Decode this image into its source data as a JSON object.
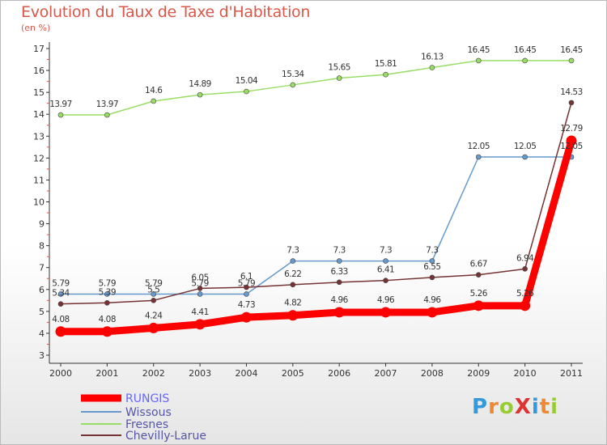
{
  "title": "Evolution du Taux de Taxe d'Habitation",
  "unit": "(en %)",
  "logo": "ProXiti",
  "chart_data": {
    "type": "line",
    "x": [
      "2000",
      "2001",
      "2002",
      "2003",
      "2004",
      "2005",
      "2006",
      "2007",
      "2008",
      "2009",
      "2010",
      "2011"
    ],
    "ylim": [
      3,
      17
    ],
    "yticks": [
      3,
      4,
      5,
      6,
      7,
      8,
      9,
      10,
      11,
      12,
      13,
      14,
      15,
      16,
      17
    ],
    "grid": false,
    "legend_position": "bottom-left",
    "series": [
      {
        "name": "RUNGIS",
        "color": "#ff0000",
        "values": [
          4.08,
          4.08,
          4.24,
          4.41,
          4.73,
          4.82,
          4.96,
          4.96,
          4.96,
          5.26,
          5.26,
          12.79
        ],
        "labels": [
          "4.08",
          "4.08",
          "4.24",
          "4.41",
          "4.73",
          "4.82",
          "4.96",
          "4.96",
          "4.96",
          "5.26",
          "5.26",
          "12.79"
        ]
      },
      {
        "name": "Wissous",
        "color": "#6699cc",
        "values": [
          5.79,
          5.79,
          5.79,
          5.79,
          5.79,
          7.3,
          7.3,
          7.3,
          7.3,
          12.05,
          12.05,
          12.05
        ],
        "labels": [
          "5.79",
          "5.79",
          "5.79",
          "5.79",
          "5.79",
          "7.3",
          "7.3",
          "7.3",
          "7.3",
          "12.05",
          "12.05",
          "12.05"
        ]
      },
      {
        "name": "Fresnes",
        "color": "#99dd66",
        "values": [
          13.97,
          13.97,
          14.6,
          14.89,
          15.04,
          15.34,
          15.65,
          15.81,
          16.13,
          16.45,
          16.45,
          16.45
        ],
        "labels": [
          "13.97",
          "13.97",
          "14.6",
          "14.89",
          "15.04",
          "15.34",
          "15.65",
          "15.81",
          "16.13",
          "16.45",
          "16.45",
          "16.45"
        ]
      },
      {
        "name": "Chevilly-Larue",
        "color": "#773333",
        "values": [
          5.34,
          5.39,
          5.5,
          6.05,
          6.1,
          6.22,
          6.33,
          6.41,
          6.55,
          6.67,
          6.94,
          14.53
        ],
        "labels": [
          "5.34",
          "5.39",
          "5.5",
          "6.05",
          "6.1",
          "6.22",
          "6.33",
          "6.41",
          "6.55",
          "6.67",
          "6.94",
          "14.53"
        ]
      }
    ]
  }
}
